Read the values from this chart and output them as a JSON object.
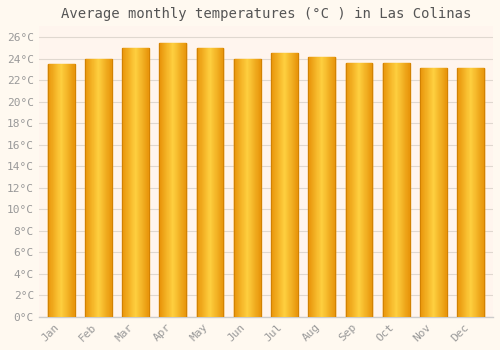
{
  "title": "Average monthly temperatures (°C ) in Las Colinas",
  "months": [
    "Jan",
    "Feb",
    "Mar",
    "Apr",
    "May",
    "Jun",
    "Jul",
    "Aug",
    "Sep",
    "Oct",
    "Nov",
    "Dec"
  ],
  "values": [
    23.5,
    24.0,
    25.0,
    25.4,
    25.0,
    24.0,
    24.5,
    24.1,
    23.6,
    23.6,
    23.1,
    23.1
  ],
  "bar_color_center": "#FFD700",
  "bar_color_edge": "#E8940A",
  "background_color": "#FFF9F0",
  "plot_bg_color": "#FFF5EE",
  "grid_color": "#E0D8D0",
  "ylim": [
    0,
    27
  ],
  "ytick_step": 2,
  "title_fontsize": 10,
  "tick_fontsize": 8,
  "tick_label_color": "#999999",
  "title_color": "#555555",
  "bar_width": 0.72,
  "bottom_spine_color": "#CCCCCC"
}
